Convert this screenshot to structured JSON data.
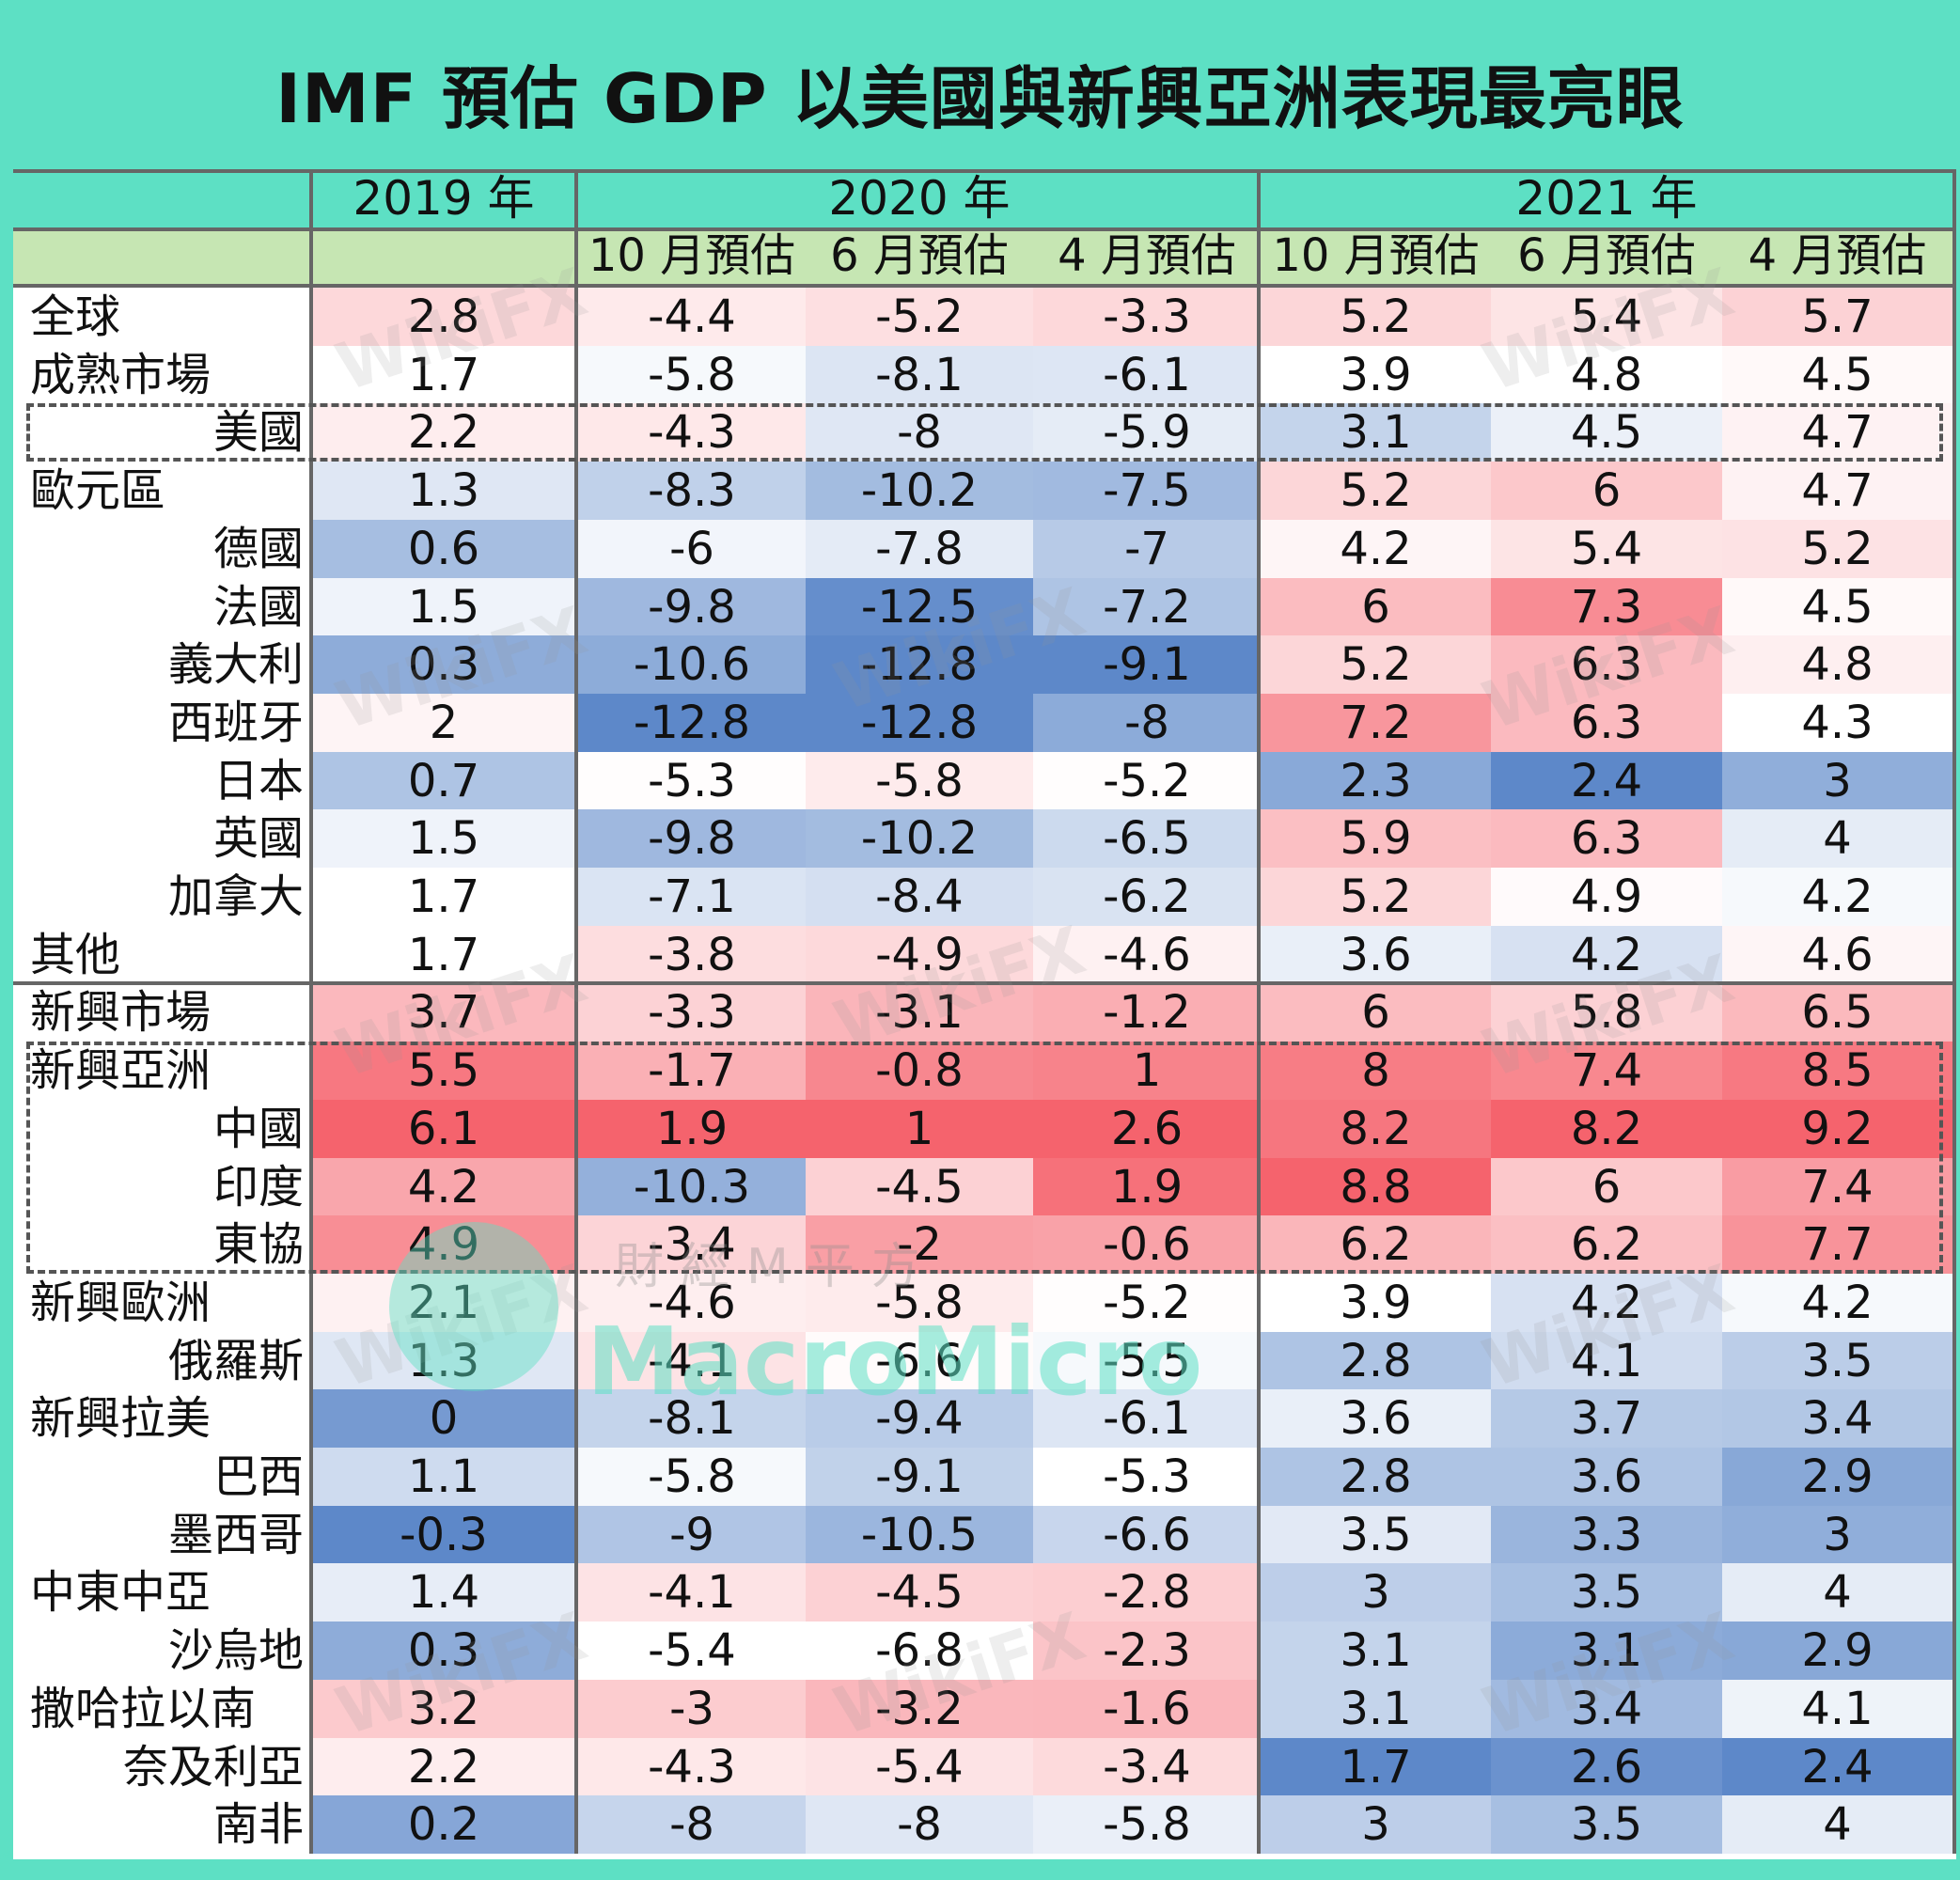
{
  "title": "IMF 預估 GDP 以美國與新興亞洲表現最亮眼",
  "watermark": {
    "wikifx": "WikiFX",
    "macromicro": "MacroMicro",
    "macromicro_cn": "財經M平方"
  },
  "colors": {
    "background": "#5de0c4",
    "subheader": "#c6e6b3",
    "negative": "#5a86c8",
    "positive": "#f5606a"
  },
  "chart_data": {
    "type": "table",
    "title": "IMF 預估 GDP 以美國與新興亞洲表現最亮眼",
    "groups": [
      {
        "label": "2019 年",
        "columns": [
          ""
        ]
      },
      {
        "label": "2020 年",
        "columns": [
          "10 月預估",
          "6 月預估",
          "4 月預估"
        ]
      },
      {
        "label": "2021 年",
        "columns": [
          "10 月預估",
          "6 月預估",
          "4 月預估"
        ]
      }
    ],
    "rows": [
      {
        "label": "全球",
        "indent": false,
        "values": [
          "2.8",
          "-4.4",
          "-5.2",
          "-3.3",
          "5.2",
          "5.4",
          "5.7"
        ]
      },
      {
        "label": "成熟市場",
        "indent": false,
        "values": [
          "1.7",
          "-5.8",
          "-8.1",
          "-6.1",
          "3.9",
          "4.8",
          "4.5"
        ]
      },
      {
        "label": "美國",
        "indent": true,
        "values": [
          "2.2",
          "-4.3",
          "-8",
          "-5.9",
          "3.1",
          "4.5",
          "4.7"
        ]
      },
      {
        "label": "歐元區",
        "indent": false,
        "values": [
          "1.3",
          "-8.3",
          "-10.2",
          "-7.5",
          "5.2",
          "6",
          "4.7"
        ]
      },
      {
        "label": "德國",
        "indent": true,
        "values": [
          "0.6",
          "-6",
          "-7.8",
          "-7",
          "4.2",
          "5.4",
          "5.2"
        ]
      },
      {
        "label": "法國",
        "indent": true,
        "values": [
          "1.5",
          "-9.8",
          "-12.5",
          "-7.2",
          "6",
          "7.3",
          "4.5"
        ]
      },
      {
        "label": "義大利",
        "indent": true,
        "values": [
          "0.3",
          "-10.6",
          "-12.8",
          "-9.1",
          "5.2",
          "6.3",
          "4.8"
        ]
      },
      {
        "label": "西班牙",
        "indent": true,
        "values": [
          "2",
          "-12.8",
          "-12.8",
          "-8",
          "7.2",
          "6.3",
          "4.3"
        ]
      },
      {
        "label": "日本",
        "indent": true,
        "values": [
          "0.7",
          "-5.3",
          "-5.8",
          "-5.2",
          "2.3",
          "2.4",
          "3"
        ]
      },
      {
        "label": "英國",
        "indent": true,
        "values": [
          "1.5",
          "-9.8",
          "-10.2",
          "-6.5",
          "5.9",
          "6.3",
          "4"
        ]
      },
      {
        "label": "加拿大",
        "indent": true,
        "values": [
          "1.7",
          "-7.1",
          "-8.4",
          "-6.2",
          "5.2",
          "4.9",
          "4.2"
        ]
      },
      {
        "label": "其他",
        "indent": false,
        "values": [
          "1.7",
          "-3.8",
          "-4.9",
          "-4.6",
          "3.6",
          "4.2",
          "4.6"
        ]
      },
      {
        "label": "新興市場",
        "indent": false,
        "values": [
          "3.7",
          "-3.3",
          "-3.1",
          "-1.2",
          "6",
          "5.8",
          "6.5"
        ]
      },
      {
        "label": "新興亞洲",
        "indent": false,
        "values": [
          "5.5",
          "-1.7",
          "-0.8",
          "1",
          "8",
          "7.4",
          "8.5"
        ]
      },
      {
        "label": "中國",
        "indent": true,
        "values": [
          "6.1",
          "1.9",
          "1",
          "2.6",
          "8.2",
          "8.2",
          "9.2"
        ]
      },
      {
        "label": "印度",
        "indent": true,
        "values": [
          "4.2",
          "-10.3",
          "-4.5",
          "1.9",
          "8.8",
          "6",
          "7.4"
        ]
      },
      {
        "label": "東協",
        "indent": true,
        "values": [
          "4.9",
          "-3.4",
          "-2",
          "-0.6",
          "6.2",
          "6.2",
          "7.7"
        ]
      },
      {
        "label": "新興歐洲",
        "indent": false,
        "values": [
          "2.1",
          "-4.6",
          "-5.8",
          "-5.2",
          "3.9",
          "4.2",
          "4.2"
        ]
      },
      {
        "label": "俄羅斯",
        "indent": true,
        "values": [
          "1.3",
          "-4.1",
          "-6.6",
          "-5.5",
          "2.8",
          "4.1",
          "3.5"
        ]
      },
      {
        "label": "新興拉美",
        "indent": false,
        "values": [
          "0",
          "-8.1",
          "-9.4",
          "-6.1",
          "3.6",
          "3.7",
          "3.4"
        ]
      },
      {
        "label": "巴西",
        "indent": true,
        "values": [
          "1.1",
          "-5.8",
          "-9.1",
          "-5.3",
          "2.8",
          "3.6",
          "2.9"
        ]
      },
      {
        "label": "墨西哥",
        "indent": true,
        "values": [
          "-0.3",
          "-9",
          "-10.5",
          "-6.6",
          "3.5",
          "3.3",
          "3"
        ]
      },
      {
        "label": "中東中亞",
        "indent": false,
        "values": [
          "1.4",
          "-4.1",
          "-4.5",
          "-2.8",
          "3",
          "3.5",
          "4"
        ]
      },
      {
        "label": "沙烏地",
        "indent": true,
        "values": [
          "0.3",
          "-5.4",
          "-6.8",
          "-2.3",
          "3.1",
          "3.1",
          "2.9"
        ]
      },
      {
        "label": "撒哈拉以南",
        "indent": false,
        "values": [
          "3.2",
          "-3",
          "-3.2",
          "-1.6",
          "3.1",
          "3.4",
          "4.1"
        ]
      },
      {
        "label": "奈及利亞",
        "indent": true,
        "values": [
          "2.2",
          "-4.3",
          "-5.4",
          "-3.4",
          "1.7",
          "2.6",
          "2.4"
        ]
      },
      {
        "label": "南非",
        "indent": true,
        "values": [
          "0.2",
          "-8",
          "-8",
          "-5.8",
          "3",
          "3.5",
          "4"
        ]
      }
    ],
    "highlighted_rows": [
      "美國",
      "新興亞洲",
      "中國",
      "印度",
      "東協"
    ]
  }
}
